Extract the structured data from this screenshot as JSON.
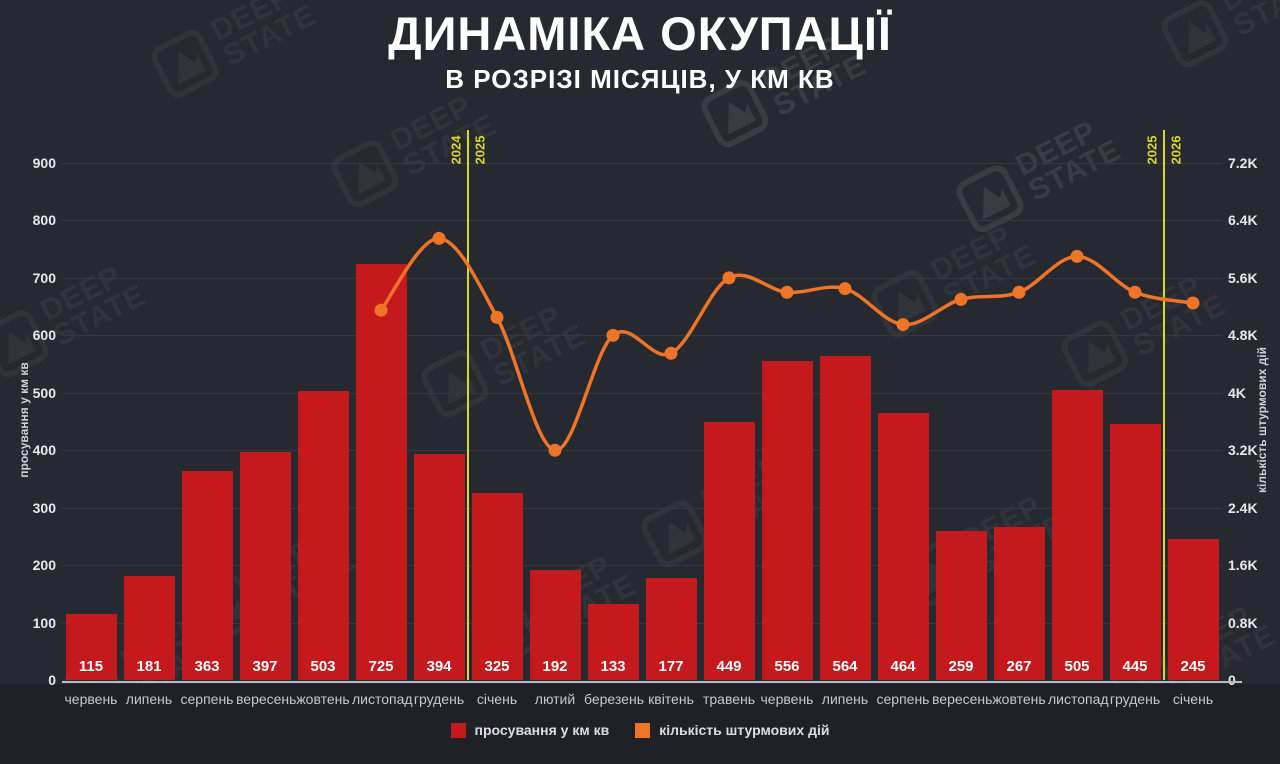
{
  "title": "ДИНАМІКА ОКУПАЦІЇ",
  "subtitle": "В РОЗРІЗІ МІСЯЦІВ, У КМ КВ",
  "watermark": {
    "line1": "DEEP",
    "line2": "STATE"
  },
  "chart_data": {
    "type": "bar",
    "categories": [
      "червень",
      "липень",
      "серпень",
      "вересень",
      "жовтень",
      "листопад",
      "грудень",
      "січень",
      "лютий",
      "березень",
      "квітень",
      "травень",
      "червень",
      "липень",
      "серпень",
      "вересень",
      "жовтень",
      "листопад",
      "грудень",
      "січень"
    ],
    "series": [
      {
        "name": "просування у км кв",
        "type": "bar",
        "axis": "left",
        "color": "#c41a1e",
        "values": [
          115,
          181,
          363,
          397,
          503,
          725,
          394,
          325,
          192,
          133,
          177,
          449,
          556,
          564,
          464,
          259,
          267,
          505,
          445,
          245
        ]
      },
      {
        "name": "кількість штурмових дій",
        "type": "line",
        "axis": "right",
        "color": "#ee7428",
        "values": [
          null,
          null,
          null,
          null,
          null,
          5150,
          6150,
          5050,
          3200,
          4800,
          4550,
          5600,
          5400,
          5450,
          4950,
          5300,
          5400,
          5900,
          5400,
          5250
        ]
      }
    ],
    "left_axis": {
      "label": "просування у км кв",
      "min": 0,
      "max": 900,
      "ticks": [
        "0",
        "100",
        "200",
        "300",
        "400",
        "500",
        "600",
        "700",
        "800",
        "900"
      ]
    },
    "right_axis": {
      "label": "кількість штурмових дій",
      "min": 0,
      "max": 7200,
      "ticks": [
        "0",
        "0.8K",
        "1.6K",
        "2.4K",
        "3.2K",
        "4K",
        "4.8K",
        "5.6K",
        "6.4K",
        "7.2K"
      ]
    },
    "year_dividers": [
      {
        "after_index": 6,
        "left_label": "2024",
        "right_label": "2025"
      },
      {
        "after_index": 18,
        "left_label": "2025",
        "right_label": "2026"
      }
    ],
    "legend": [
      {
        "label": "просування у км кв",
        "color": "#c41a1e"
      },
      {
        "label": "кількість штурмових дій",
        "color": "#ee7428"
      }
    ],
    "colors": {
      "background": "#26292f",
      "bottom_band": "#1f2127",
      "grid": "#35383e",
      "divider": "#d8da24",
      "bar": "#c41a1e",
      "line": "#ee7428"
    },
    "grid": true,
    "legend_position": "bottom"
  }
}
